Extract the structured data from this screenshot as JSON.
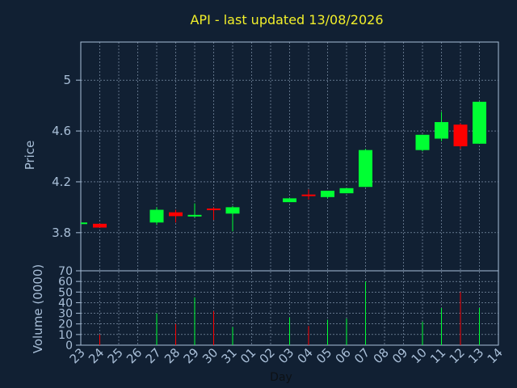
{
  "chart_data": {
    "type": "candlestick",
    "title": "API - last updated 13/08/2026",
    "xlabel": "Day",
    "price_panel": {
      "ylabel": "Price",
      "ylim": [
        3.5,
        5.3
      ],
      "yticks": [
        3.8,
        4.2,
        4.6,
        5
      ]
    },
    "volume_panel": {
      "ylabel": "Volume (0000)",
      "ylim": [
        0,
        70
      ],
      "yticks": [
        0,
        10,
        20,
        30,
        40,
        50,
        60,
        70
      ]
    },
    "days": [
      "23",
      "24",
      "25",
      "26",
      "27",
      "28",
      "29",
      "30",
      "31",
      "01",
      "02",
      "03",
      "04",
      "05",
      "06",
      "07",
      "08",
      "09",
      "10",
      "11",
      "12",
      "13",
      "14"
    ],
    "candles": [
      {
        "day": "23",
        "open": 3.88,
        "high": 3.88,
        "low": 3.88,
        "close": 3.88,
        "volume": 0
      },
      {
        "day": "24",
        "open": 3.87,
        "high": 3.87,
        "low": 3.84,
        "close": 3.84,
        "volume": 10
      },
      {
        "day": "27",
        "open": 3.88,
        "high": 4.0,
        "low": 3.86,
        "close": 3.98,
        "volume": 30
      },
      {
        "day": "28",
        "open": 3.96,
        "high": 3.98,
        "low": 3.88,
        "close": 3.93,
        "volume": 20
      },
      {
        "day": "29",
        "open": 3.93,
        "high": 4.03,
        "low": 3.92,
        "close": 3.94,
        "volume": 45
      },
      {
        "day": "30",
        "open": 3.99,
        "high": 4.0,
        "low": 3.9,
        "close": 3.98,
        "volume": 32
      },
      {
        "day": "31",
        "open": 3.95,
        "high": 4.01,
        "low": 3.81,
        "close": 4.0,
        "volume": 17
      },
      {
        "day": "03",
        "open": 4.04,
        "high": 4.07,
        "low": 4.04,
        "close": 4.07,
        "volume": 26
      },
      {
        "day": "04",
        "open": 4.1,
        "high": 4.14,
        "low": 4.06,
        "close": 4.09,
        "volume": 18
      },
      {
        "day": "05",
        "open": 4.08,
        "high": 4.13,
        "low": 4.07,
        "close": 4.13,
        "volume": 24
      },
      {
        "day": "06",
        "open": 4.11,
        "high": 4.15,
        "low": 4.11,
        "close": 4.15,
        "volume": 25
      },
      {
        "day": "07",
        "open": 4.16,
        "high": 4.46,
        "low": 4.16,
        "close": 4.45,
        "volume": 60
      },
      {
        "day": "10",
        "open": 4.45,
        "high": 4.57,
        "low": 4.44,
        "close": 4.57,
        "volume": 22
      },
      {
        "day": "11",
        "open": 4.54,
        "high": 4.75,
        "low": 4.52,
        "close": 4.67,
        "volume": 35
      },
      {
        "day": "12",
        "open": 4.65,
        "high": 4.66,
        "low": 4.46,
        "close": 4.48,
        "volume": 50
      },
      {
        "day": "13",
        "open": 4.5,
        "high": 4.83,
        "low": 4.5,
        "close": 4.83,
        "volume": 35
      }
    ],
    "colors": {
      "background": "#112033",
      "plot_border": "#a9bfd8",
      "grid": "#a9bfd8",
      "up": "#00ff33",
      "down": "#ff0000",
      "title": "#f2ef2a",
      "text": "#a9bfd8",
      "xlabel": "#0d1115"
    }
  }
}
